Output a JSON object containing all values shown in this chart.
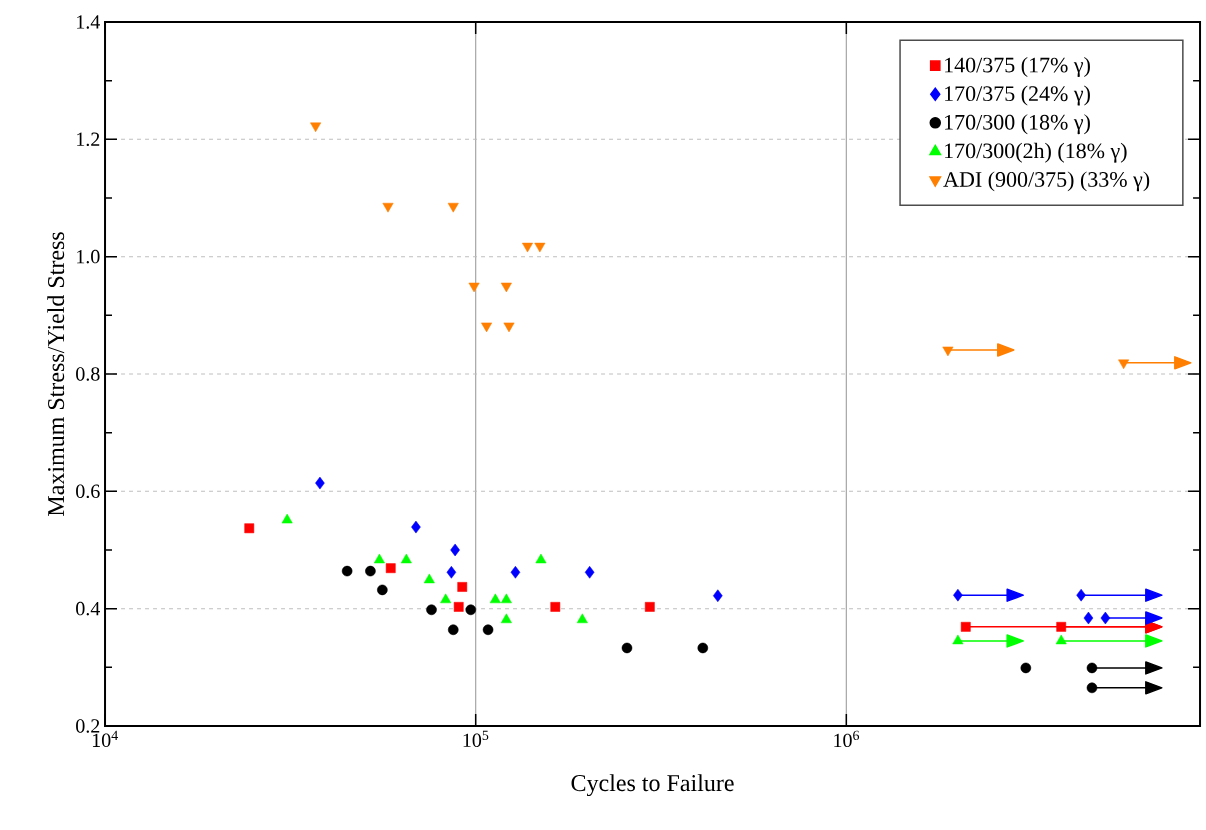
{
  "chart_data": {
    "type": "scatter",
    "xlabel": "Cycles to Failure",
    "ylabel": "Maximum Stress/Yield Stress",
    "log": "x",
    "grid": true,
    "legend": "top right",
    "xlim": [
      10000,
      9000000
    ],
    "ylim": [
      0.2,
      1.4
    ],
    "xticks": [
      {
        "value": 10000,
        "label": "10$^{4}$"
      },
      {
        "value": 100000,
        "label": "10$^{5}$"
      },
      {
        "value": 1000000,
        "label": "10$^{6}$"
      }
    ],
    "yticks": [
      0.2,
      0.4,
      0.6,
      0.8,
      {
        "value": 1,
        "label": "1.0"
      },
      1.2,
      1.4
    ],
    "series": [
      {
        "name": "140/375 (17% γ)",
        "color": "#ff0000",
        "marker": "square",
        "x": [
          24500,
          59000,
          92000,
          90000,
          164000,
          295000,
          2100000,
          3800000
        ],
        "values": [
          0.537,
          0.469,
          0.437,
          0.403,
          0.403,
          0.403,
          0.369,
          0.369
        ],
        "xerrors": [
          null,
          null,
          null,
          null,
          null,
          null,
          [
            2100000,
            7100000
          ],
          [
            3800000,
            7100000
          ]
        ]
      },
      {
        "name": "170/375 (24% γ)",
        "color": "#0000ff",
        "marker": "diamond",
        "x": [
          38000,
          69000,
          88000,
          86000,
          128000,
          203000,
          450000,
          2000000,
          4300000,
          4500000,
          5000000
        ],
        "values": [
          0.614,
          0.539,
          0.5,
          0.462,
          0.462,
          0.462,
          0.422,
          0.423,
          0.423,
          0.384,
          0.384
        ],
        "xerrors": [
          null,
          null,
          null,
          null,
          null,
          null,
          null,
          [
            2000000,
            3000000
          ],
          [
            4300000,
            7100000
          ],
          null,
          [
            5000000,
            7100000
          ]
        ]
      },
      {
        "name": "170/300 (18% γ)",
        "color": "#000000",
        "marker": "circle",
        "x": [
          45000,
          52000,
          56000,
          76000,
          87000,
          97000,
          108000,
          256000,
          410000,
          3050000,
          4600000,
          4600000
        ],
        "values": [
          0.464,
          0.464,
          0.432,
          0.398,
          0.364,
          0.398,
          0.364,
          0.333,
          0.333,
          0.299,
          0.299,
          0.265
        ],
        "xerrors": [
          null,
          null,
          null,
          null,
          null,
          null,
          null,
          null,
          null,
          null,
          [
            4600000,
            7100000
          ],
          [
            4600000,
            7100000
          ]
        ]
      },
      {
        "name": "170/300(2h) (18% γ)",
        "color": "#00ff00",
        "marker": "triangle",
        "x": [
          31000,
          55000,
          65000,
          75000,
          83000,
          113000,
          121000,
          121000,
          150000,
          194000,
          2000000,
          3800000
        ],
        "values": [
          0.551,
          0.483,
          0.483,
          0.449,
          0.415,
          0.415,
          0.415,
          0.381,
          0.483,
          0.381,
          0.345,
          0.345
        ],
        "xerrors": [
          null,
          null,
          null,
          null,
          null,
          null,
          null,
          null,
          null,
          null,
          [
            2000000,
            3000000
          ],
          [
            3800000,
            7100000
          ]
        ]
      },
      {
        "name": "ADI (900/375) (33% γ)",
        "color": "#ff7f00",
        "marker": "triangle-down",
        "x": [
          37000,
          58000,
          87000,
          99000,
          107000,
          121000,
          123000,
          138000,
          149000,
          1880000,
          5600000
        ],
        "values": [
          1.223,
          1.086,
          1.086,
          0.95,
          0.882,
          0.95,
          0.882,
          1.018,
          1.018,
          0.841,
          0.819
        ],
        "xerrors": [
          null,
          null,
          null,
          null,
          null,
          null,
          null,
          null,
          null,
          [
            1880000,
            2830000
          ],
          [
            5600000,
            8500000
          ]
        ]
      }
    ]
  }
}
